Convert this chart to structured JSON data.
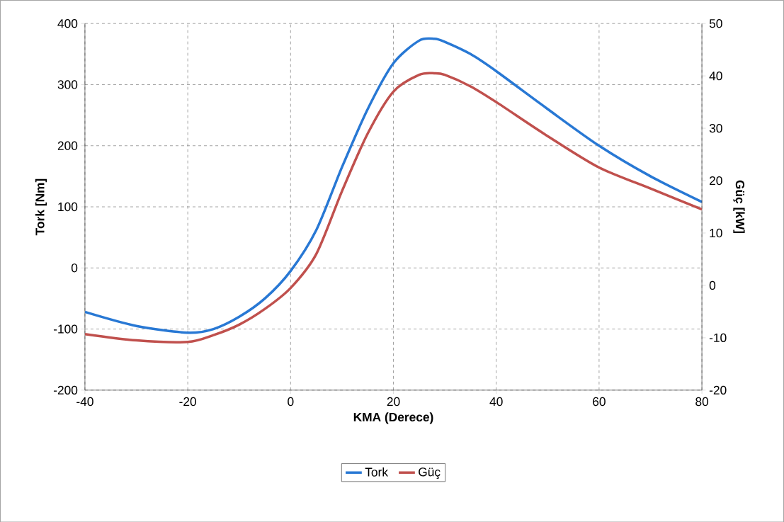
{
  "chart_data": {
    "type": "line",
    "xlabel": "KMA (Derece)",
    "ylabel": "Tork [Nm]",
    "y2label": "Güç [kW]",
    "x": [
      -40,
      -30,
      -20,
      -15,
      -10,
      -5,
      0,
      5,
      10,
      15,
      20,
      25,
      28,
      30,
      35,
      40,
      50,
      60,
      70,
      80
    ],
    "series": [
      {
        "name": "Tork",
        "color": "#2878d4",
        "values": [
          -72,
          -95,
          -106,
          -100,
          -80,
          -50,
          -5,
          62,
          165,
          260,
          335,
          372,
          375,
          370,
          350,
          322,
          260,
          200,
          150,
          108
        ]
      },
      {
        "name": "Güç",
        "color": "#c0504d",
        "axis": "y2",
        "values": [
          -9.3,
          -10.5,
          -10.8,
          -9.5,
          -7.5,
          -4.5,
          -0.5,
          6,
          18,
          29,
          37,
          40.2,
          40.5,
          40.2,
          38,
          35,
          28.5,
          22.5,
          18.5,
          14.5
        ]
      }
    ],
    "xlim": [
      -40,
      80
    ],
    "xticks": [
      -40,
      -20,
      0,
      20,
      40,
      60,
      80
    ],
    "ylim": [
      -200,
      400
    ],
    "yticks": [
      -200,
      -100,
      0,
      100,
      200,
      300,
      400
    ],
    "y2lim": [
      -20,
      50
    ],
    "y2ticks": [
      -20,
      -10,
      0,
      10,
      20,
      30,
      40,
      50
    ],
    "grid": true,
    "legend": "bottom"
  }
}
